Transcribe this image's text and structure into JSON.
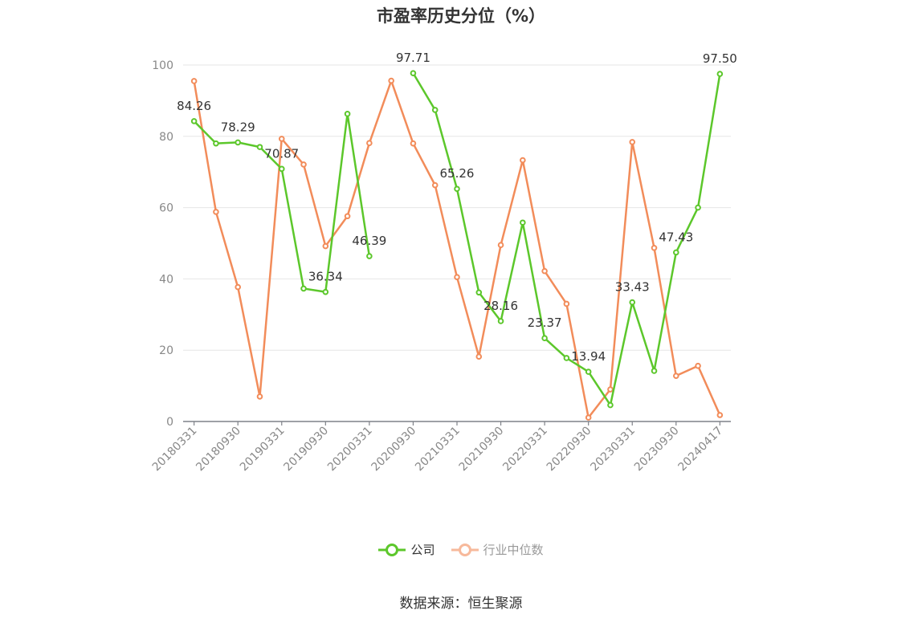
{
  "chart_data": {
    "type": "line",
    "title": "市盈率历史分位（%）",
    "ylim": [
      0,
      100
    ],
    "yticks": [
      0,
      20,
      40,
      60,
      80,
      100
    ],
    "x": [
      "20180331",
      "20180630",
      "20180930",
      "20181231",
      "20190331",
      "20190630",
      "20190930",
      "20191231",
      "20200331",
      "20200630",
      "20200930",
      "20201231",
      "20210331",
      "20210630",
      "20210930",
      "20211231",
      "20220331",
      "20220630",
      "20220930",
      "20221231",
      "20230331",
      "20230630",
      "20230930",
      "20231231",
      "20240417"
    ],
    "xtick_labels": [
      "20180331",
      "20180930",
      "20190331",
      "20190930",
      "20200331",
      "20200930",
      "20210331",
      "20210930",
      "20220331",
      "20220930",
      "20230331",
      "20230930",
      "20240417"
    ],
    "grid": true,
    "legend_position": "bottom",
    "series": [
      {
        "name": "公司",
        "color": "#5cc72b",
        "values": [
          84.26,
          78.0,
          78.29,
          77.0,
          70.87,
          37.3,
          36.34,
          86.3,
          46.39,
          null,
          97.71,
          87.4,
          65.26,
          36.2,
          28.16,
          55.8,
          23.37,
          17.8,
          13.94,
          4.6,
          33.43,
          14.2,
          47.43,
          60.0,
          97.5
        ],
        "labels": {
          "0": "84.26",
          "2": "78.29",
          "4": "70.87",
          "6": "36.34",
          "8": "46.39",
          "10": "97.71",
          "12": "65.26",
          "14": "28.16",
          "16": "23.37",
          "18": "13.94",
          "20": "33.43",
          "22": "47.43",
          "24": "97.50"
        }
      },
      {
        "name": "行业中位数",
        "color": "#f28c5a",
        "values": [
          95.5,
          58.8,
          37.7,
          7.0,
          79.3,
          72.1,
          49.2,
          57.6,
          78.1,
          95.6,
          78.0,
          66.3,
          40.5,
          18.2,
          49.5,
          73.3,
          42.2,
          33.0,
          1.1,
          9.0,
          78.4,
          48.7,
          12.8,
          15.6,
          1.8
        ]
      }
    ]
  },
  "legend": {
    "company": "公司",
    "industry": "行业中位数"
  },
  "source": "数据来源：恒生聚源"
}
